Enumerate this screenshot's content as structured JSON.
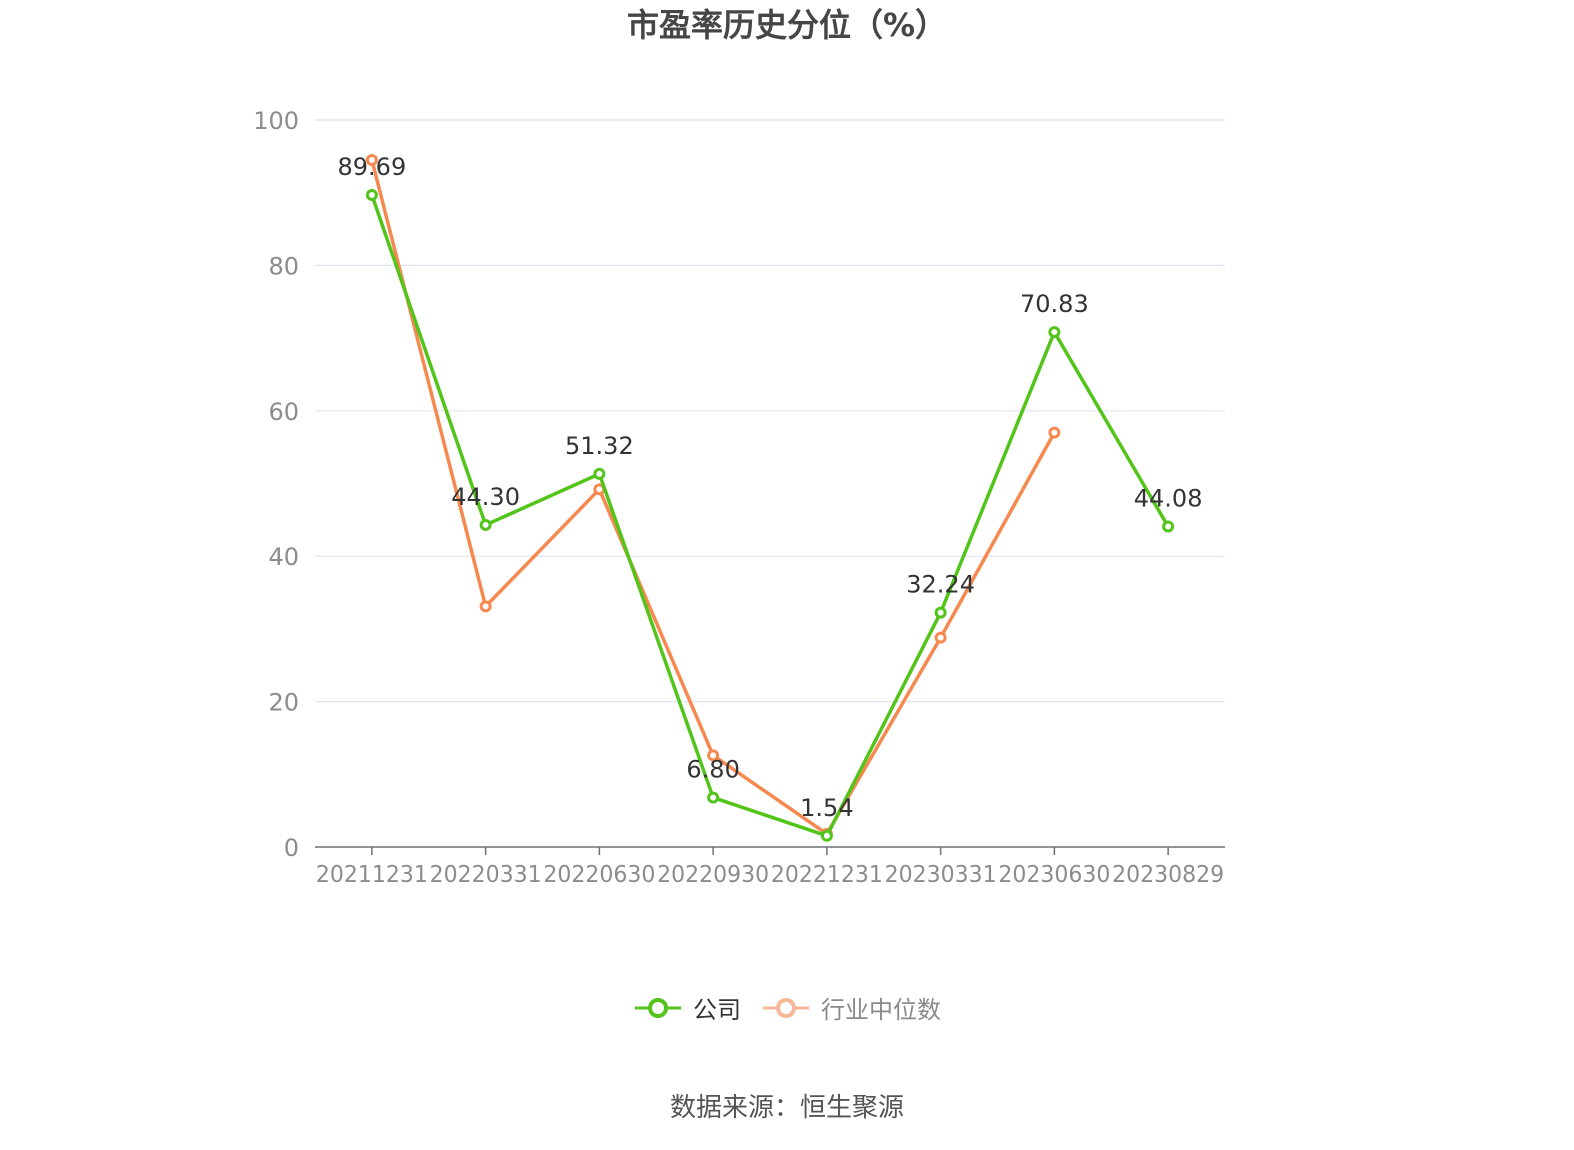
{
  "title": "市盈率历史分位（%）",
  "source_text": "数据来源：恒生聚源",
  "chart_data": {
    "type": "line",
    "title": "市盈率历史分位（%）",
    "categories": [
      "20211231",
      "20220331",
      "20220630",
      "20220930",
      "20221231",
      "20230331",
      "20230630",
      "20230829"
    ],
    "ylim": [
      0,
      100
    ],
    "yticks": [
      0,
      20,
      40,
      60,
      80,
      100
    ],
    "grid": true,
    "legend_position": "bottom",
    "series": [
      {
        "name": "公司",
        "color": "#52c41a",
        "values": [
          89.69,
          44.3,
          51.32,
          6.8,
          1.54,
          32.24,
          70.83,
          44.08
        ],
        "labels": [
          "89.69",
          "44.30",
          "51.32",
          "6.80",
          "1.54",
          "32.24",
          "70.83",
          "44.08"
        ]
      },
      {
        "name": "行业中位数",
        "color": "#f5894f",
        "legend_color": "#f8b796",
        "values": [
          94.5,
          33.1,
          49.2,
          12.6,
          1.8,
          28.8,
          57.0,
          null
        ]
      }
    ]
  }
}
